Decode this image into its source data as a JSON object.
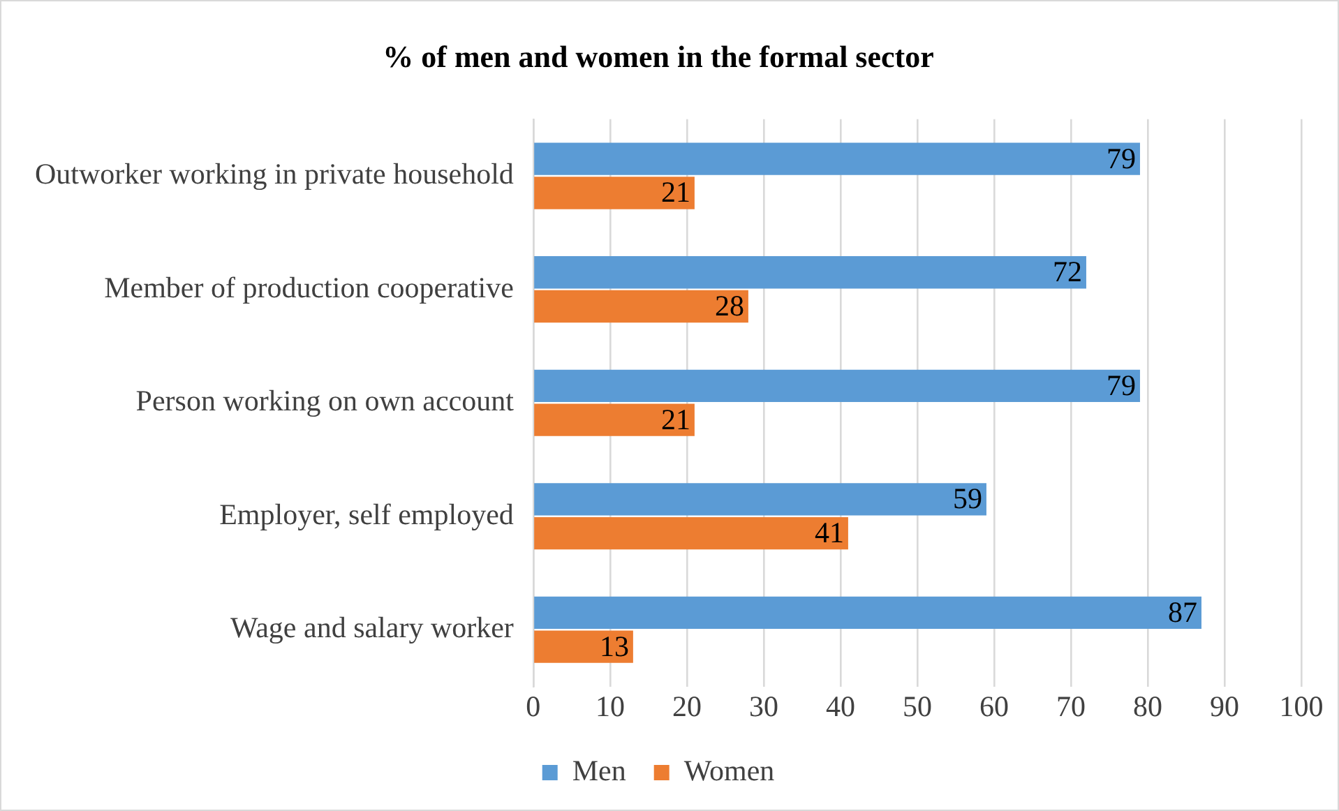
{
  "chart_data": {
    "type": "bar",
    "orientation": "horizontal",
    "title": "% of men and women in the formal sector",
    "categories": [
      "Outworker working in private household",
      "Member of production cooperative",
      "Person working on own account",
      "Employer, self employed",
      "Wage and salary worker"
    ],
    "series": [
      {
        "name": "Men",
        "color": "#5b9bd5",
        "values": [
          79,
          72,
          79,
          59,
          87
        ]
      },
      {
        "name": "Women",
        "color": "#ed7d31",
        "values": [
          21,
          28,
          21,
          41,
          13
        ]
      }
    ],
    "xlim": [
      0,
      100
    ],
    "xticks": [
      0,
      10,
      20,
      30,
      40,
      50,
      60,
      70,
      80,
      90,
      100
    ],
    "grid": "x",
    "legend": "bottom",
    "data_labels": true
  }
}
